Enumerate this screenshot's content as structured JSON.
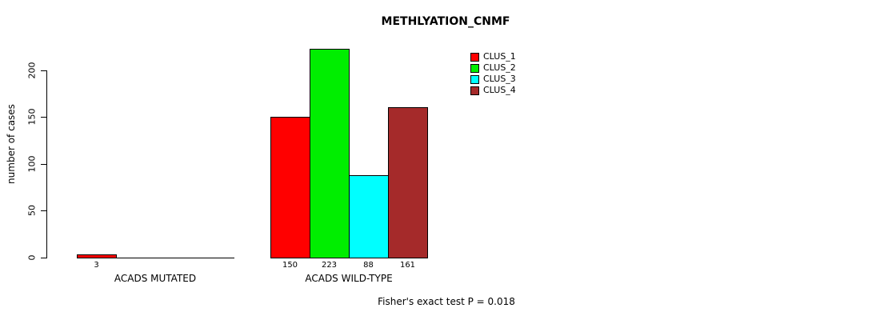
{
  "chart_data": {
    "type": "bar",
    "title": "METHLYATION_CNMF",
    "ylabel": "number of cases",
    "xlabel": "",
    "categories": [
      "ACADS MUTATED",
      "ACADS WILD-TYPE"
    ],
    "series": [
      {
        "name": "CLUS_1",
        "color": "#ff0000",
        "values": [
          3,
          150
        ]
      },
      {
        "name": "CLUS_2",
        "color": "#00ee00",
        "values": [
          0,
          223
        ]
      },
      {
        "name": "CLUS_3",
        "color": "#00ffff",
        "values": [
          0,
          88
        ]
      },
      {
        "name": "CLUS_4",
        "color": "#a52a2a",
        "values": [
          0,
          161
        ]
      }
    ],
    "yticks": [
      0,
      50,
      100,
      150,
      200
    ],
    "ylim": [
      0,
      223
    ],
    "grid": false,
    "legend_position": "top-right",
    "legend_frame": false,
    "bar_value_labels": "below bars, non-zero values only",
    "annotation": "Fisher's exact test P = 0.018"
  }
}
